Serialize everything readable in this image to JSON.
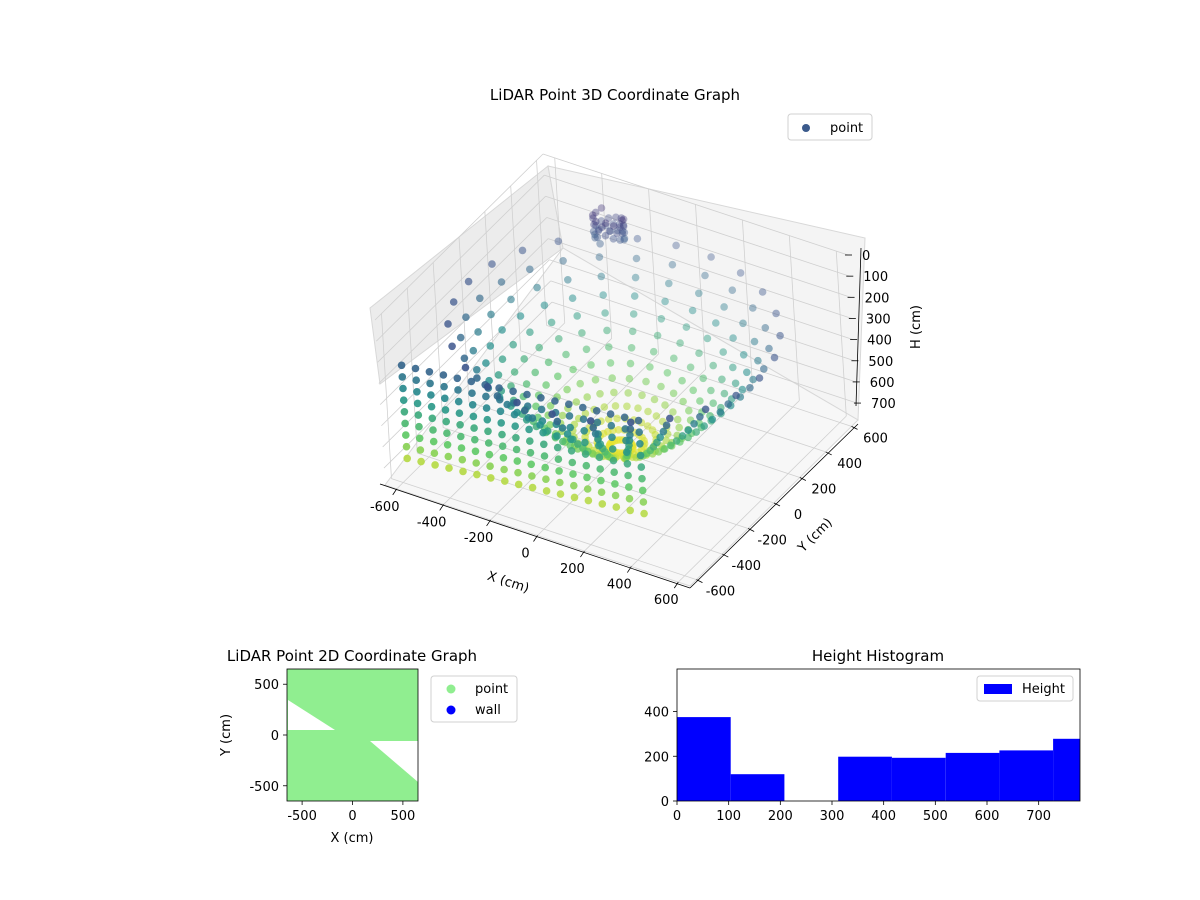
{
  "chart_data": [
    {
      "type": "scatter",
      "title": "LiDAR Point 3D Coordinate Graph",
      "xlabel": "X (cm)",
      "ylabel": "Y (cm)",
      "zlabel": "H (cm)",
      "x_ticks": [
        "-600",
        "-400",
        "-200",
        "0",
        "200",
        "400",
        "600"
      ],
      "y_ticks": [
        "-600",
        "-400",
        "-200",
        "0",
        "200",
        "400",
        "600"
      ],
      "z_ticks": [
        "0",
        "100",
        "200",
        "300",
        "400",
        "500",
        "600",
        "700"
      ],
      "xlim": [
        -650,
        650
      ],
      "ylim": [
        -650,
        650
      ],
      "zlim": [
        0,
        780
      ],
      "z_inverted": true,
      "grid": true,
      "legend": {
        "position": "top-right",
        "entries": [
          {
            "label": "point",
            "color": "#3b5a8c"
          }
        ]
      },
      "colormap": "viridis",
      "series": [
        {
          "name": "point"
        }
      ]
    },
    {
      "type": "scatter",
      "title": "LiDAR Point 2D Coordinate Graph",
      "xlabel": "X (cm)",
      "ylabel": "Y (cm)",
      "x_ticks": [
        "-500",
        "0",
        "500"
      ],
      "y_ticks": [
        "500",
        "0",
        "-500"
      ],
      "xlim": [
        -650,
        650
      ],
      "ylim": [
        -650,
        650
      ],
      "grid": false,
      "legend": {
        "position": "outside-right",
        "entries": [
          {
            "label": "point",
            "color": "#90ee90"
          },
          {
            "label": "wall",
            "color": "#0000ff"
          }
        ]
      },
      "series": [
        {
          "name": "point",
          "color": "#90ee90"
        },
        {
          "name": "wall",
          "color": "#0000ff"
        }
      ]
    },
    {
      "type": "bar",
      "title": "Height Histogram",
      "x_ticks": [
        "0",
        "100",
        "200",
        "300",
        "400",
        "500",
        "600",
        "700"
      ],
      "y_ticks": [
        "0",
        "200",
        "400"
      ],
      "xlim": [
        0,
        780
      ],
      "ylim": [
        0,
        590
      ],
      "legend": {
        "position": "top-right",
        "entries": [
          {
            "label": "Height",
            "color": "#0000ff"
          }
        ]
      },
      "bins": [
        {
          "x0": 0,
          "x1": 104,
          "value": 375
        },
        {
          "x0": 104,
          "x1": 208,
          "value": 120
        },
        {
          "x0": 208,
          "x1": 312,
          "value": 0
        },
        {
          "x0": 312,
          "x1": 416,
          "value": 198
        },
        {
          "x0": 416,
          "x1": 520,
          "value": 193
        },
        {
          "x0": 520,
          "x1": 624,
          "value": 215
        },
        {
          "x0": 624,
          "x1": 728,
          "value": 226
        },
        {
          "x0": 728,
          "x1": 780,
          "value": 278
        }
      ],
      "color": "#0000ff"
    }
  ]
}
